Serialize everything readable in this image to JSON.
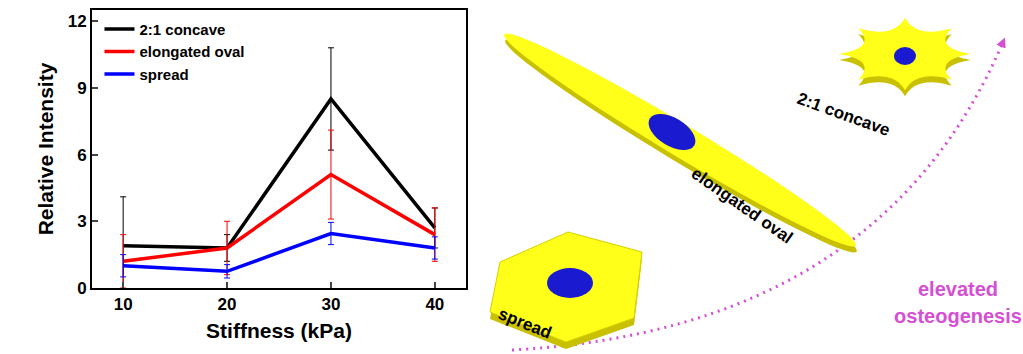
{
  "chart_data": {
    "type": "line",
    "x_label": "Stiffness (kPa)",
    "y_label": "Relative Intensity",
    "x": [
      10,
      20,
      30,
      40
    ],
    "series": [
      {
        "name": "2:1 concave",
        "color": "#000000",
        "values": [
          1.9,
          1.8,
          8.5,
          2.7
        ],
        "errors": [
          2.2,
          0.6,
          2.3,
          0.9
        ]
      },
      {
        "name": "elongated oval",
        "color": "#ff0000",
        "values": [
          1.2,
          1.8,
          5.1,
          2.4
        ],
        "errors": [
          1.2,
          1.2,
          2.0,
          1.2
        ]
      },
      {
        "name": "spread",
        "color": "#0000ff",
        "values": [
          1.0,
          0.75,
          2.45,
          1.8
        ],
        "errors": [
          0.5,
          0.3,
          0.5,
          0.5
        ]
      }
    ],
    "xlim": [
      7,
      43
    ],
    "xticks": [
      10,
      20,
      30,
      40
    ],
    "ylim": [
      0,
      12.5
    ],
    "yticks": [
      0,
      3,
      6,
      9,
      12
    ],
    "grid": false,
    "legend": "upper left"
  },
  "diagram": {
    "shapes": [
      "spread",
      "elongated oval",
      "2:1 concave"
    ],
    "arrow_label": [
      "elevated",
      "osteogenesis"
    ]
  }
}
